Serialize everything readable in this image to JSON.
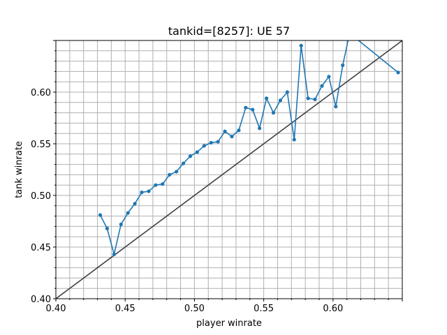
{
  "chart_data": {
    "type": "line",
    "title": "tankid=[8257]: UE 57",
    "xlabel": "player winrate",
    "ylabel": "tank winrate",
    "xlim": [
      0.4,
      0.65
    ],
    "ylim": [
      0.4,
      0.65
    ],
    "grid": true,
    "x_ticks": [
      "0.40",
      "0.45",
      "0.50",
      "0.55",
      "0.60"
    ],
    "y_ticks": [
      "0.40",
      "0.45",
      "0.50",
      "0.55",
      "0.60"
    ],
    "colors": {
      "series": "#1f77b4",
      "reference": "#404040",
      "grid": "#b0b0b0"
    },
    "reference_line": {
      "x": [
        0.4,
        0.65
      ],
      "y": [
        0.4,
        0.65
      ]
    },
    "series": [
      {
        "x": [
          0.432,
          0.437,
          0.442,
          0.447,
          0.452,
          0.457,
          0.462,
          0.467,
          0.472,
          0.477,
          0.482,
          0.487,
          0.492,
          0.497,
          0.502,
          0.507,
          0.512,
          0.517,
          0.522,
          0.527,
          0.532,
          0.537,
          0.542,
          0.547,
          0.552,
          0.557,
          0.562,
          0.567,
          0.572,
          0.577,
          0.582,
          0.587,
          0.592,
          0.597,
          0.602,
          0.607,
          0.612,
          0.647
        ],
        "y": [
          0.481,
          0.468,
          0.443,
          0.472,
          0.483,
          0.492,
          0.503,
          0.504,
          0.51,
          0.511,
          0.52,
          0.523,
          0.531,
          0.538,
          0.542,
          0.548,
          0.551,
          0.552,
          0.562,
          0.557,
          0.563,
          0.585,
          0.583,
          0.565,
          0.594,
          0.58,
          0.592,
          0.6,
          0.554,
          0.645,
          0.594,
          0.593,
          0.606,
          0.615,
          0.586,
          0.626,
          0.657,
          0.619
        ]
      }
    ]
  }
}
